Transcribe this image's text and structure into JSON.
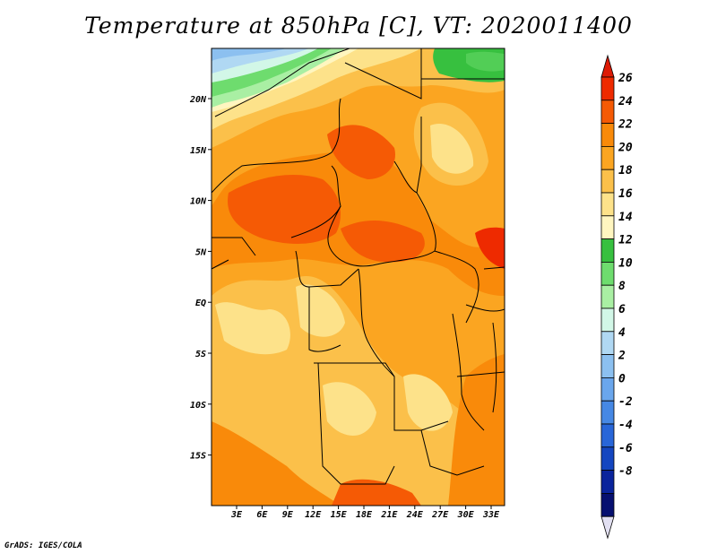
{
  "title": "Temperature at 850hPa [C], VT: 2020011400",
  "credit": "GrADS: IGES/COLA",
  "map": {
    "lat_labels": [
      "20N",
      "15N",
      "10N",
      "5N",
      "EQ",
      "5S",
      "10S",
      "15S"
    ],
    "lon_labels": [
      "3E",
      "6E",
      "9E",
      "12E",
      "15E",
      "18E",
      "21E",
      "24E",
      "27E",
      "30E",
      "33E"
    ]
  },
  "colorbar": {
    "labels": [
      "26",
      "24",
      "22",
      "20",
      "18",
      "16",
      "14",
      "12",
      "10",
      "8",
      "6",
      "4",
      "2",
      "0",
      "-2",
      "-4",
      "-6",
      "-8"
    ],
    "colors": [
      "#ee2a00",
      "#f55a05",
      "#f98a0a",
      "#fba521",
      "#fbc04a",
      "#fde28a",
      "#fff6c0",
      "#37c03f",
      "#6edc6e",
      "#a9efa3",
      "#d2f7e7",
      "#b0d8f3",
      "#8cc0f0",
      "#6aa6ec",
      "#4688e4",
      "#2866d8",
      "#1446c0",
      "#0a249c",
      "#061070"
    ],
    "top_arrow_color": "#dd1a05",
    "bottom_arrow_color": "#e2e0f2"
  }
}
